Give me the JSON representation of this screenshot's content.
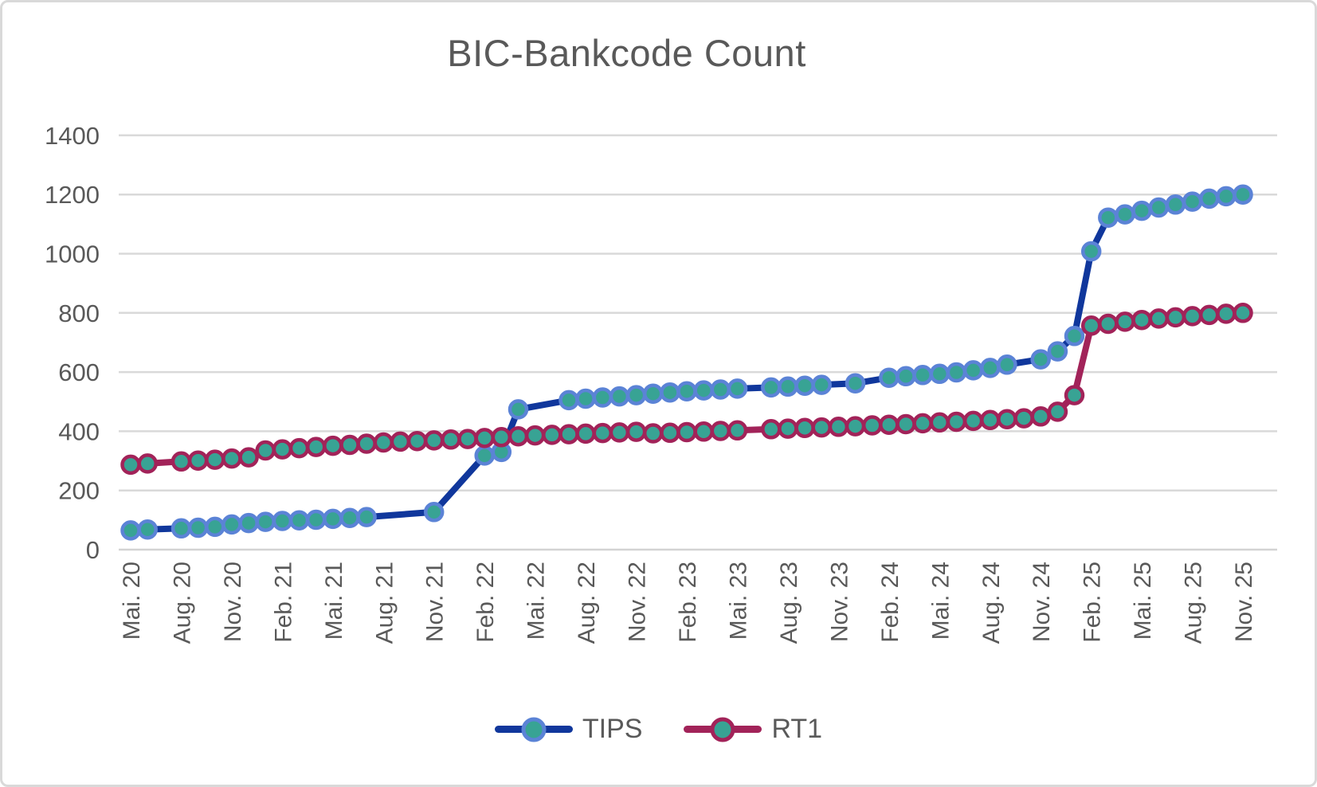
{
  "chart_data": {
    "type": "line",
    "title": "BIC-Bankcode Count",
    "xlabel": "",
    "ylabel": "",
    "ylim": [
      0,
      1400
    ],
    "ytick_step": 200,
    "ytick_labels": [
      "0",
      "200",
      "400",
      "600",
      "800",
      "1000",
      "1200",
      "1400"
    ],
    "x_tick_every": 3,
    "grid": true,
    "legend_position": "bottom",
    "colors": {
      "text": "#595959",
      "gridline": "#d9d9d9",
      "axis_line": "#d3d3d3",
      "background": "#ffffff",
      "frame_border": "#d9d9d9"
    },
    "categories": [
      "Mai. 20",
      "Jun. 20",
      "Jul. 20",
      "Aug. 20",
      "Sep. 20",
      "Okt. 20",
      "Nov. 20",
      "Dez. 20",
      "Jan. 21",
      "Feb. 21",
      "Mär. 21",
      "Apr. 21",
      "Mai. 21",
      "Jun. 21",
      "Jul. 21",
      "Aug. 21",
      "Sep. 21",
      "Okt. 21",
      "Nov. 21",
      "Dez. 21",
      "Jan. 22",
      "Feb. 22",
      "Mär. 22",
      "Apr. 22",
      "Mai. 22",
      "Jun. 22",
      "Jul. 22",
      "Aug. 22",
      "Sep. 22",
      "Okt. 22",
      "Nov. 22",
      "Dez. 22",
      "Jan. 23",
      "Feb. 23",
      "Mär. 23",
      "Apr. 23",
      "Mai. 23",
      "Jun. 23",
      "Jul. 23",
      "Aug. 23",
      "Sep. 23",
      "Okt. 23",
      "Nov. 23",
      "Dez. 23",
      "Jan. 24",
      "Feb. 24",
      "Mär. 24",
      "Apr. 24",
      "Mai. 24",
      "Jun. 24",
      "Jul. 24",
      "Aug. 24",
      "Sep. 24",
      "Okt. 24",
      "Nov. 24",
      "Dez. 24",
      "Jan. 25",
      "Feb. 25",
      "Mär. 25",
      "Apr. 25",
      "Mai. 25",
      "Jun. 25",
      "Jul. 25",
      "Aug. 25",
      "Sep. 25",
      "Okt. 25",
      "Nov. 25"
    ],
    "series": [
      {
        "name": "TIPS",
        "line_color": "#10379c",
        "marker_fill": "#38a394",
        "marker_ring": "#5b83d6",
        "values": [
          65,
          68,
          null,
          72,
          74,
          77,
          85,
          90,
          94,
          97,
          99,
          101,
          104,
          107,
          110,
          null,
          null,
          null,
          127,
          null,
          null,
          318,
          330,
          474,
          null,
          null,
          505,
          510,
          514,
          518,
          522,
          527,
          531,
          535,
          538,
          541,
          544,
          null,
          548,
          551,
          554,
          557,
          null,
          562,
          null,
          581,
          586,
          590,
          594,
          599,
          606,
          614,
          625,
          null,
          643,
          670,
          722,
          1008,
          1122,
          1133,
          1145,
          1156,
          1166,
          1176,
          1186,
          1194,
          1200
        ]
      },
      {
        "name": "RT1",
        "line_color": "#a22359",
        "marker_fill": "#38a394",
        "marker_ring": "#a22359",
        "values": [
          287,
          291,
          null,
          298,
          301,
          304,
          308,
          312,
          335,
          339,
          343,
          347,
          351,
          354,
          358,
          362,
          365,
          367,
          369,
          372,
          374,
          377,
          380,
          383,
          386,
          388,
          390,
          392,
          394,
          396,
          398,
          393,
          395,
          397,
          399,
          401,
          403,
          null,
          407,
          409,
          411,
          413,
          415,
          417,
          420,
          422,
          424,
          427,
          430,
          432,
          435,
          438,
          441,
          444,
          450,
          466,
          522,
          757,
          763,
          770,
          776,
          781,
          785,
          789,
          793,
          797,
          800
        ]
      }
    ]
  }
}
